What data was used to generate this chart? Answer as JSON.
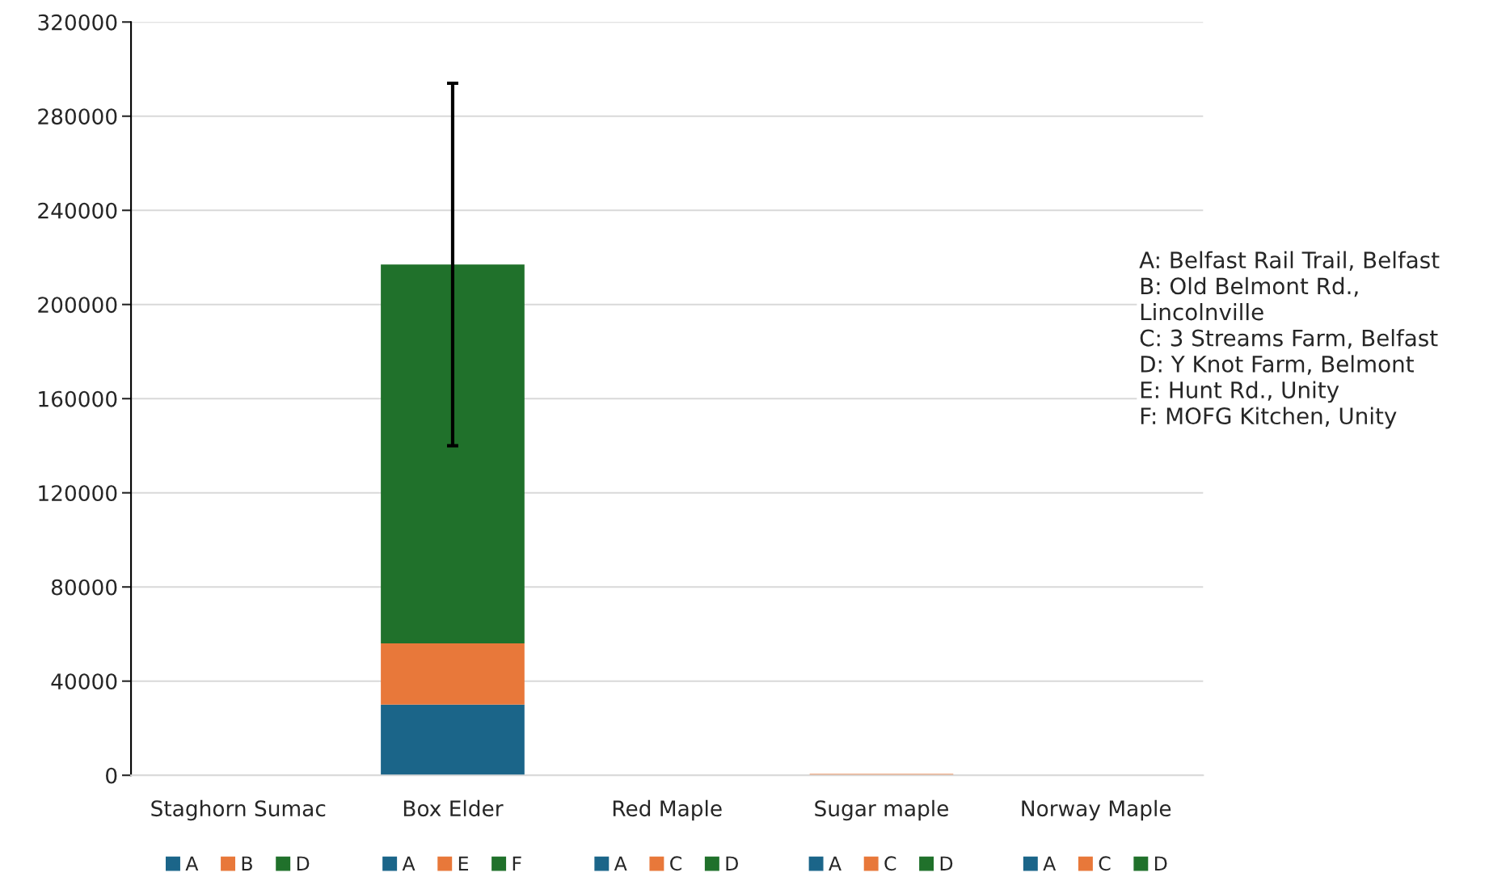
{
  "chart_data": {
    "type": "bar",
    "stacked": true,
    "categories": [
      "Staghorn Sumac",
      "Box Elder",
      "Red Maple",
      "Sugar maple",
      "Norway Maple"
    ],
    "series": [
      {
        "name": "A",
        "color": "#1b6589",
        "values": [
          0,
          30000,
          0,
          0,
          0
        ]
      },
      {
        "name": "B",
        "color": "#e8783a",
        "values": [
          0,
          null,
          null,
          null,
          null
        ]
      },
      {
        "name": "C",
        "color": "#e8783a",
        "values": [
          null,
          null,
          0,
          600,
          0
        ]
      },
      {
        "name": "E",
        "color": "#e8783a",
        "values": [
          null,
          26000,
          null,
          null,
          null
        ]
      },
      {
        "name": "D",
        "color": "#20712b",
        "values": [
          0,
          null,
          0,
          0,
          0
        ]
      },
      {
        "name": "F",
        "color": "#20712b",
        "values": [
          null,
          161000,
          null,
          null,
          null
        ],
        "errors": [
          null,
          77000,
          null,
          null,
          null
        ]
      }
    ],
    "ylim": [
      0,
      320000
    ],
    "yticks": [
      0,
      40000,
      80000,
      120000,
      160000,
      200000,
      240000,
      280000,
      320000
    ],
    "grid": "y",
    "legend": "bottom",
    "annotations": [
      "A: Belfast Rail Trail, Belfast\nB: Old Belmont Rd.,\nLincolnville\nC: 3 Streams Farm, Belfast\nD: Y Knot Farm, Belmont\nE: Hunt Rd., Unity\nF: MOFG Kitchen, Unity"
    ]
  }
}
